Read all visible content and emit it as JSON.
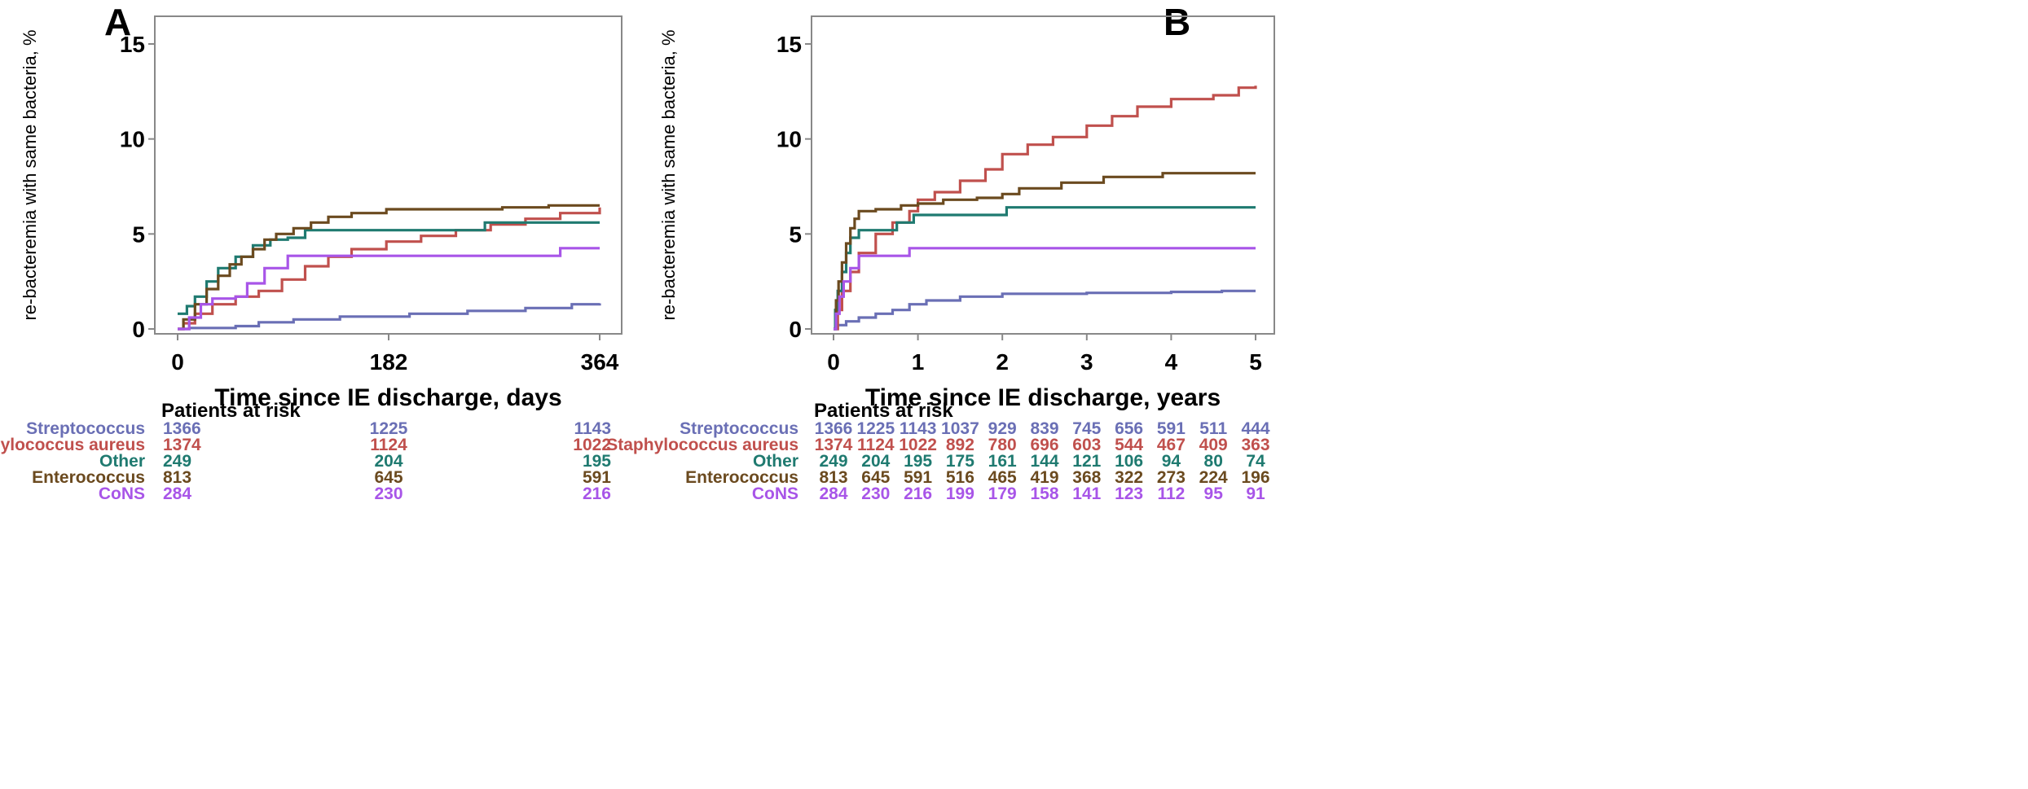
{
  "panel_a": {
    "letter": "A"
  },
  "panel_b": {
    "letter": "B"
  },
  "risk_table_title": "Patients at risk",
  "colors": {
    "Streptococcus": "#6a6fb5",
    "Staphylococcus aureus": "#c0504d",
    "Other": "#1f7a70",
    "Enterococcus": "#6b4a1f",
    "CoNS": "#a855e8"
  },
  "chart_data": [
    {
      "type": "line",
      "step": true,
      "xlabel": "Time since IE discharge, days",
      "ylabel": "re-bacteremia with same bacteria, %",
      "xlim": [
        0,
        364
      ],
      "ylim": [
        0,
        15
      ],
      "xticks": [
        0,
        182,
        364
      ],
      "yticks": [
        0,
        5,
        10,
        15
      ],
      "series": [
        {
          "name": "Streptococcus",
          "x": [
            0,
            10,
            50,
            70,
            100,
            140,
            200,
            250,
            300,
            340,
            364
          ],
          "y": [
            0,
            0.05,
            0.15,
            0.35,
            0.5,
            0.65,
            0.8,
            0.95,
            1.1,
            1.3,
            1.35
          ]
        },
        {
          "name": "Staphylococcus aureus",
          "x": [
            0,
            5,
            15,
            30,
            50,
            70,
            90,
            110,
            130,
            150,
            180,
            210,
            240,
            270,
            300,
            330,
            364
          ],
          "y": [
            0,
            0.3,
            0.8,
            1.3,
            1.7,
            2.0,
            2.6,
            3.3,
            3.8,
            4.2,
            4.6,
            4.9,
            5.2,
            5.5,
            5.8,
            6.1,
            6.4
          ]
        },
        {
          "name": "Other",
          "x": [
            0,
            8,
            15,
            25,
            35,
            50,
            65,
            80,
            95,
            110,
            200,
            265,
            364
          ],
          "y": [
            0.8,
            1.2,
            1.7,
            2.5,
            3.2,
            3.8,
            4.4,
            4.7,
            4.8,
            5.2,
            5.2,
            5.6,
            5.6
          ]
        },
        {
          "name": "Enterococcus",
          "x": [
            0,
            5,
            15,
            25,
            35,
            45,
            55,
            65,
            75,
            85,
            100,
            115,
            130,
            150,
            180,
            220,
            280,
            320,
            364
          ],
          "y": [
            0,
            0.5,
            1.3,
            2.1,
            2.8,
            3.4,
            3.8,
            4.2,
            4.7,
            5.0,
            5.3,
            5.6,
            5.9,
            6.1,
            6.3,
            6.3,
            6.4,
            6.5,
            6.5
          ]
        },
        {
          "name": "CoNS",
          "x": [
            0,
            10,
            20,
            30,
            50,
            60,
            75,
            95,
            330,
            364
          ],
          "y": [
            0,
            0.6,
            1.3,
            1.6,
            1.7,
            2.4,
            3.2,
            3.85,
            4.25,
            4.25
          ]
        }
      ],
      "risk_table": {
        "x": [
          0,
          182,
          364
        ],
        "rows": [
          {
            "name": "Streptococcus",
            "values": [
              1366,
              1225,
              1143
            ]
          },
          {
            "name": "Staphylococcus aureus",
            "values": [
              1374,
              1124,
              1022
            ]
          },
          {
            "name": "Other",
            "values": [
              249,
              204,
              195
            ]
          },
          {
            "name": "Enterococcus",
            "values": [
              813,
              645,
              591
            ]
          },
          {
            "name": "CoNS",
            "values": [
              284,
              230,
              216
            ]
          }
        ]
      }
    },
    {
      "type": "line",
      "step": true,
      "xlabel": "Time since IE discharge, years",
      "ylabel": "re-bacteremia with same bacteria, %",
      "xlim": [
        0,
        5
      ],
      "ylim": [
        0,
        15
      ],
      "xticks": [
        0,
        1,
        2,
        3,
        4,
        5
      ],
      "yticks": [
        0,
        5,
        10,
        15
      ],
      "series": [
        {
          "name": "Streptococcus",
          "x": [
            0,
            0.05,
            0.15,
            0.3,
            0.5,
            0.7,
            0.9,
            1.1,
            1.5,
            2.0,
            3.0,
            4.0,
            4.6,
            5.0
          ],
          "y": [
            0,
            0.2,
            0.4,
            0.6,
            0.8,
            1.0,
            1.3,
            1.5,
            1.7,
            1.85,
            1.9,
            1.95,
            2.0,
            2.0
          ]
        },
        {
          "name": "Staphylococcus aureus",
          "x": [
            0,
            0.05,
            0.1,
            0.2,
            0.3,
            0.5,
            0.7,
            0.9,
            1.0,
            1.2,
            1.5,
            1.8,
            2.0,
            2.3,
            2.6,
            3.0,
            3.3,
            3.6,
            4.0,
            4.5,
            4.8,
            5.0
          ],
          "y": [
            0,
            1.0,
            2.0,
            3.0,
            4.0,
            5.0,
            5.6,
            6.2,
            6.8,
            7.2,
            7.8,
            8.4,
            9.2,
            9.7,
            10.1,
            10.7,
            11.2,
            11.7,
            12.1,
            12.3,
            12.7,
            12.8
          ]
        },
        {
          "name": "Other",
          "x": [
            0,
            0.02,
            0.05,
            0.1,
            0.15,
            0.2,
            0.3,
            0.75,
            0.95,
            2.05,
            5.0
          ],
          "y": [
            0,
            1.0,
            2.0,
            3.0,
            4.0,
            4.8,
            5.2,
            5.6,
            6.0,
            6.4,
            6.4
          ]
        },
        {
          "name": "Enterococcus",
          "x": [
            0,
            0.03,
            0.06,
            0.1,
            0.15,
            0.2,
            0.25,
            0.3,
            0.5,
            0.8,
            1.0,
            1.3,
            1.7,
            2.0,
            2.2,
            2.7,
            3.2,
            3.9,
            5.0
          ],
          "y": [
            0,
            1.5,
            2.5,
            3.5,
            4.5,
            5.3,
            5.8,
            6.2,
            6.3,
            6.5,
            6.6,
            6.8,
            6.9,
            7.1,
            7.4,
            7.7,
            8.0,
            8.2,
            8.2
          ]
        },
        {
          "name": "CoNS",
          "x": [
            0,
            0.03,
            0.07,
            0.12,
            0.2,
            0.3,
            0.9,
            5.0
          ],
          "y": [
            0,
            0.8,
            1.7,
            2.5,
            3.2,
            3.85,
            4.25,
            4.25
          ]
        }
      ],
      "risk_table": {
        "x": [
          0,
          0.5,
          1,
          1.5,
          2,
          2.5,
          3,
          3.5,
          4,
          4.5,
          5
        ],
        "rows": [
          {
            "name": "Streptococcus",
            "values": [
              1366,
              1225,
              1143,
              1037,
              929,
              839,
              745,
              656,
              591,
              511,
              444
            ]
          },
          {
            "name": "Staphylococcus aureus",
            "values": [
              1374,
              1124,
              1022,
              892,
              780,
              696,
              603,
              544,
              467,
              409,
              363
            ]
          },
          {
            "name": "Other",
            "values": [
              249,
              204,
              195,
              175,
              161,
              144,
              121,
              106,
              94,
              80,
              74
            ]
          },
          {
            "name": "Enterococcus",
            "values": [
              813,
              645,
              591,
              516,
              465,
              419,
              368,
              322,
              273,
              224,
              196
            ]
          },
          {
            "name": "CoNS",
            "values": [
              284,
              230,
              216,
              199,
              179,
              158,
              141,
              123,
              112,
              95,
              91
            ]
          }
        ]
      }
    }
  ]
}
